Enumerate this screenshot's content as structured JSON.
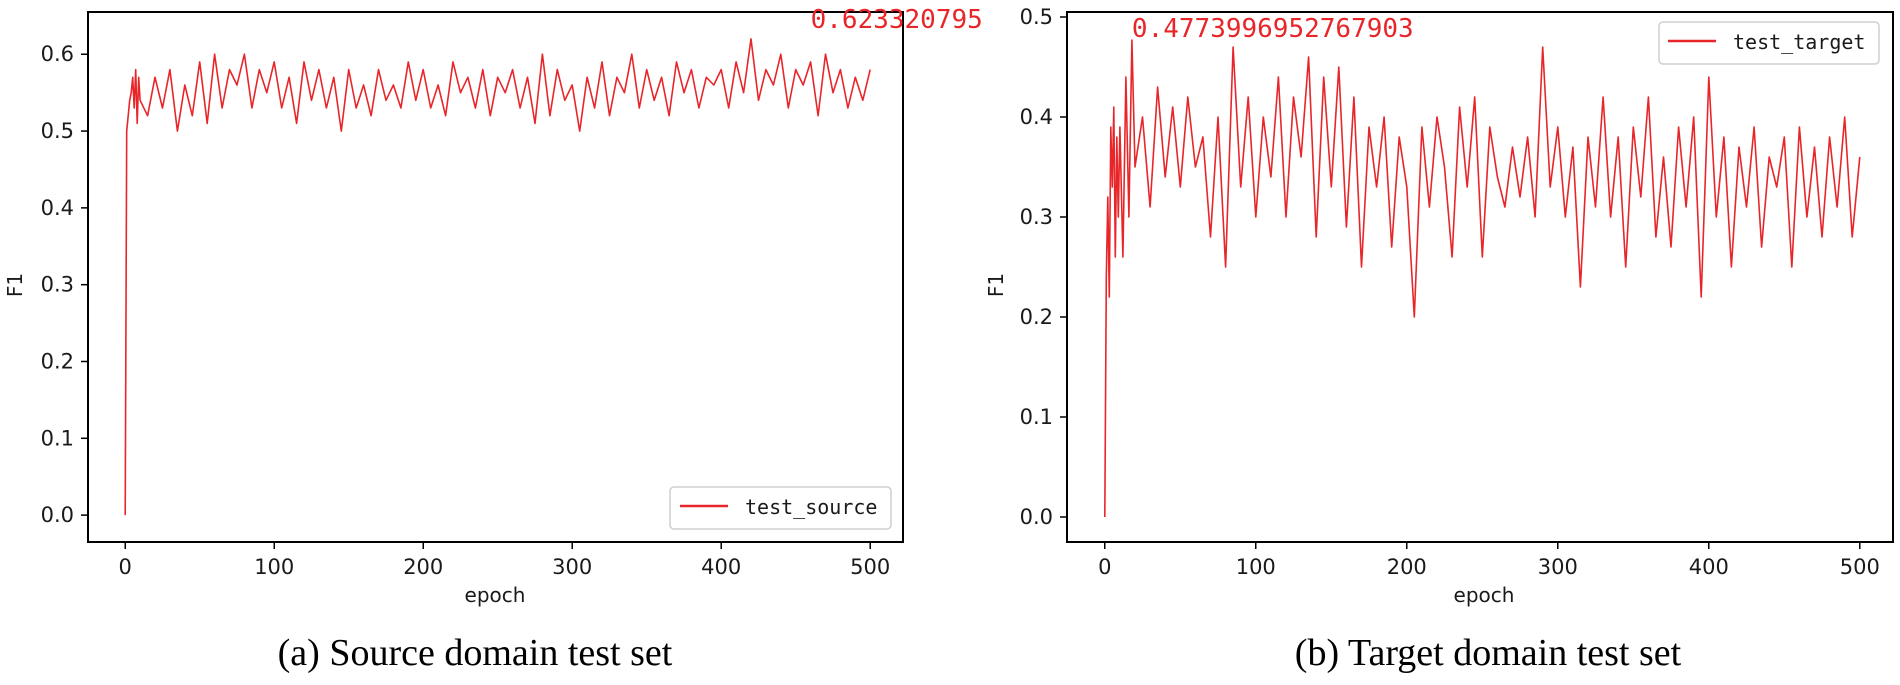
{
  "chart_data": [
    {
      "type": "line",
      "caption": "(a) Source domain test set",
      "xlabel": "epoch",
      "ylabel": "F1",
      "xlim": [
        -25,
        522
      ],
      "ylim": [
        -0.035,
        0.655
      ],
      "xticks": [
        0,
        100,
        200,
        300,
        400,
        500
      ],
      "yticks": [
        0.0,
        0.1,
        0.2,
        0.3,
        0.4,
        0.5,
        0.6
      ],
      "xtick_labels": [
        "0",
        "100",
        "200",
        "300",
        "400",
        "500"
      ],
      "ytick_labels": [
        "0.0",
        "0.1",
        "0.2",
        "0.3",
        "0.4",
        "0.5",
        "0.6"
      ],
      "grid": false,
      "legend_position": "lower-right",
      "series": [
        {
          "name": "test_source",
          "color": "#e8262a",
          "x": [
            0,
            1,
            2,
            3,
            4,
            5,
            6,
            7,
            8,
            9,
            10,
            15,
            20,
            25,
            30,
            35,
            40,
            45,
            50,
            55,
            60,
            65,
            70,
            75,
            80,
            85,
            90,
            95,
            100,
            105,
            110,
            115,
            120,
            125,
            130,
            135,
            140,
            145,
            150,
            155,
            160,
            165,
            170,
            175,
            180,
            185,
            190,
            195,
            200,
            205,
            210,
            215,
            220,
            225,
            230,
            235,
            240,
            245,
            250,
            255,
            260,
            265,
            270,
            275,
            280,
            285,
            290,
            295,
            300,
            305,
            310,
            315,
            320,
            325,
            330,
            335,
            340,
            345,
            350,
            355,
            360,
            365,
            370,
            375,
            380,
            385,
            390,
            395,
            400,
            405,
            410,
            415,
            420,
            425,
            430,
            435,
            440,
            445,
            450,
            455,
            460,
            465,
            470,
            475,
            480,
            485,
            490,
            495,
            500
          ],
          "values": [
            0.0,
            0.5,
            0.52,
            0.54,
            0.55,
            0.57,
            0.53,
            0.58,
            0.51,
            0.57,
            0.54,
            0.52,
            0.57,
            0.53,
            0.58,
            0.5,
            0.56,
            0.52,
            0.59,
            0.51,
            0.6,
            0.53,
            0.58,
            0.56,
            0.6,
            0.53,
            0.58,
            0.55,
            0.59,
            0.53,
            0.57,
            0.51,
            0.59,
            0.54,
            0.58,
            0.53,
            0.57,
            0.5,
            0.58,
            0.53,
            0.56,
            0.52,
            0.58,
            0.54,
            0.56,
            0.53,
            0.59,
            0.54,
            0.58,
            0.53,
            0.56,
            0.52,
            0.59,
            0.55,
            0.57,
            0.53,
            0.58,
            0.52,
            0.57,
            0.55,
            0.58,
            0.53,
            0.57,
            0.51,
            0.6,
            0.52,
            0.58,
            0.54,
            0.56,
            0.5,
            0.57,
            0.53,
            0.59,
            0.52,
            0.57,
            0.55,
            0.6,
            0.53,
            0.58,
            0.54,
            0.57,
            0.52,
            0.59,
            0.55,
            0.58,
            0.53,
            0.57,
            0.56,
            0.58,
            0.53,
            0.59,
            0.55,
            0.62,
            0.54,
            0.58,
            0.56,
            0.6,
            0.53,
            0.58,
            0.56,
            0.59,
            0.52,
            0.6,
            0.55,
            0.58,
            0.53,
            0.57,
            0.54,
            0.58
          ]
        }
      ],
      "annotations": [
        {
          "text": "0.623320795",
          "x": 460,
          "y": 0.634,
          "color": "#e8262a"
        }
      ]
    },
    {
      "type": "line",
      "caption": "(b) Target domain test set",
      "xlabel": "epoch",
      "ylabel": "F1",
      "xlim": [
        -25,
        522
      ],
      "ylim": [
        -0.025,
        0.505
      ],
      "xticks": [
        0,
        100,
        200,
        300,
        400,
        500
      ],
      "yticks": [
        0.0,
        0.1,
        0.2,
        0.3,
        0.4,
        0.5
      ],
      "xtick_labels": [
        "0",
        "100",
        "200",
        "300",
        "400",
        "500"
      ],
      "ytick_labels": [
        "0.0",
        "0.1",
        "0.2",
        "0.3",
        "0.4",
        "0.5"
      ],
      "grid": false,
      "legend_position": "upper-right",
      "series": [
        {
          "name": "test_target",
          "color": "#e8262a",
          "x": [
            0,
            1,
            2,
            3,
            4,
            5,
            6,
            7,
            8,
            9,
            10,
            12,
            14,
            16,
            18,
            20,
            25,
            30,
            35,
            40,
            45,
            50,
            55,
            60,
            65,
            70,
            75,
            80,
            85,
            90,
            95,
            100,
            105,
            110,
            115,
            120,
            125,
            130,
            135,
            140,
            145,
            150,
            155,
            160,
            165,
            170,
            175,
            180,
            185,
            190,
            195,
            200,
            205,
            210,
            215,
            220,
            225,
            230,
            235,
            240,
            245,
            250,
            255,
            260,
            265,
            270,
            275,
            280,
            285,
            290,
            295,
            300,
            305,
            310,
            315,
            320,
            325,
            330,
            335,
            340,
            345,
            350,
            355,
            360,
            365,
            370,
            375,
            380,
            385,
            390,
            395,
            400,
            405,
            410,
            415,
            420,
            425,
            430,
            435,
            440,
            445,
            450,
            455,
            460,
            465,
            470,
            475,
            480,
            485,
            490,
            495,
            500
          ],
          "values": [
            0.0,
            0.24,
            0.32,
            0.22,
            0.39,
            0.33,
            0.41,
            0.26,
            0.38,
            0.3,
            0.39,
            0.26,
            0.44,
            0.3,
            0.477,
            0.35,
            0.4,
            0.31,
            0.43,
            0.34,
            0.41,
            0.33,
            0.42,
            0.35,
            0.38,
            0.28,
            0.4,
            0.25,
            0.47,
            0.33,
            0.42,
            0.3,
            0.4,
            0.34,
            0.44,
            0.3,
            0.42,
            0.36,
            0.46,
            0.28,
            0.44,
            0.33,
            0.45,
            0.29,
            0.42,
            0.25,
            0.39,
            0.33,
            0.4,
            0.27,
            0.38,
            0.33,
            0.2,
            0.39,
            0.31,
            0.4,
            0.35,
            0.26,
            0.41,
            0.33,
            0.42,
            0.26,
            0.39,
            0.34,
            0.31,
            0.37,
            0.32,
            0.38,
            0.3,
            0.47,
            0.33,
            0.39,
            0.3,
            0.37,
            0.23,
            0.38,
            0.31,
            0.42,
            0.3,
            0.38,
            0.25,
            0.39,
            0.32,
            0.42,
            0.28,
            0.36,
            0.27,
            0.39,
            0.31,
            0.4,
            0.22,
            0.44,
            0.3,
            0.38,
            0.25,
            0.37,
            0.31,
            0.39,
            0.27,
            0.36,
            0.33,
            0.38,
            0.25,
            0.39,
            0.3,
            0.37,
            0.28,
            0.38,
            0.31,
            0.4,
            0.28,
            0.36
          ]
        }
      ],
      "annotations": [
        {
          "text": "0.4773996952767903",
          "x": 18,
          "y": 0.48,
          "color": "#e8262a"
        }
      ]
    }
  ]
}
